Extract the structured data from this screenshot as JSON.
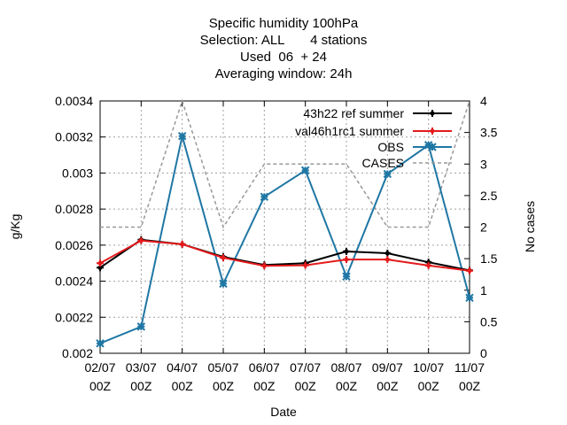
{
  "chart_data": {
    "type": "line",
    "title": [
      "Specific humidity 100hPa",
      "Selection: ALL       4 stations",
      "Used  06  + 24",
      "Averaging window: 24h"
    ],
    "xlabel": "Date",
    "ylabel": "g/Kg",
    "y2label": "No cases",
    "categories": [
      "02/07\n00Z",
      "03/07\n00Z",
      "04/07\n00Z",
      "05/07\n00Z",
      "06/07\n00Z",
      "07/07\n00Z",
      "08/07\n00Z",
      "09/07\n00Z",
      "10/07\n00Z",
      "11/07\n00Z"
    ],
    "ylim": [
      0.002,
      0.0034
    ],
    "yticks": [
      "0.002",
      "0.0022",
      "0.0024",
      "0.0026",
      "0.0028",
      "0.003",
      "0.0032",
      "0.0034"
    ],
    "y2lim": [
      0,
      4
    ],
    "y2ticks": [
      "0",
      "0.5",
      "1",
      "1.5",
      "2",
      "2.5",
      "3",
      "3.5",
      "4"
    ],
    "grid": true,
    "legend_position": "top-right",
    "series": [
      {
        "name": "43h22_ref_summer",
        "legend": "43h22 ref summer",
        "axis": "y",
        "color": "#000000",
        "marker": "plus",
        "values": [
          0.002475,
          0.00263,
          0.002605,
          0.002535,
          0.00249,
          0.0025,
          0.002565,
          0.002555,
          0.002505,
          0.00246
        ]
      },
      {
        "name": "val46h1rc1_summer",
        "legend": "val46h1rc1 summer",
        "axis": "y",
        "color": "#e41a1c",
        "marker": "plus",
        "values": [
          0.0025,
          0.002625,
          0.002605,
          0.00253,
          0.002485,
          0.002488,
          0.00252,
          0.00252,
          0.002487,
          0.002458
        ]
      },
      {
        "name": "OBS",
        "axis": "y",
        "color": "#1f77a4",
        "marker": "star",
        "values": [
          0.002055,
          0.002148,
          0.003205,
          0.002386,
          0.002868,
          0.003015,
          0.002426,
          0.002995,
          0.003155,
          0.002308
        ]
      },
      {
        "name": "CASES",
        "axis": "y2",
        "color": "#999999",
        "dashed": true,
        "values": [
          2,
          2,
          4,
          2,
          3,
          3,
          3,
          2,
          2,
          4
        ]
      }
    ]
  }
}
